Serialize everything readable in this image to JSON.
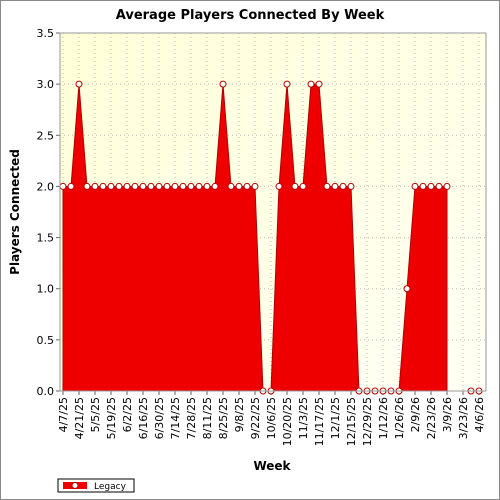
{
  "chart_data": {
    "type": "area",
    "title": "Average Players Connected By Week",
    "x_label": "Week",
    "y_label": "Players Connected",
    "categories": [
      "4/7/25",
      null,
      "4/21/25",
      null,
      "5/5/25",
      null,
      "5/19/25",
      null,
      "6/2/25",
      null,
      "6/16/25",
      null,
      "6/30/25",
      null,
      "7/14/25",
      null,
      "7/28/25",
      null,
      "8/11/25",
      null,
      "8/25/25",
      null,
      "9/8/25",
      null,
      "9/22/25",
      null,
      "10/6/25",
      null,
      "10/20/25",
      null,
      "11/3/25",
      null,
      "11/17/25",
      null,
      "12/1/25",
      null,
      "12/15/25",
      null,
      "12/29/25",
      null,
      "1/12/26",
      null,
      "1/26/26",
      null,
      "2/9/26",
      null,
      "2/23/26",
      null,
      "3/9/26",
      null,
      "3/23/26",
      null,
      "4/6/26"
    ],
    "series": [
      {
        "name": "Legacy",
        "color": "#ee0000",
        "values": [
          2,
          2,
          3,
          2,
          2,
          2,
          2,
          2,
          2,
          2,
          2,
          2,
          2,
          2,
          2,
          2,
          2,
          2,
          2,
          2,
          3,
          2,
          2,
          2,
          2,
          0,
          0,
          2,
          3,
          2,
          2,
          3,
          3,
          2,
          2,
          2,
          2,
          0,
          0,
          0,
          0,
          0,
          0,
          1,
          2,
          2,
          2,
          2,
          2,
          null,
          null,
          0,
          0
        ]
      }
    ],
    "ylim": [
      0,
      3.5
    ],
    "yticks": [
      {
        "value": 0,
        "label": "0.0"
      },
      {
        "value": 0.5,
        "label": "0.5"
      },
      {
        "value": 1,
        "label": "1.0"
      },
      {
        "value": 1.5,
        "label": "1.5"
      },
      {
        "value": 2,
        "label": "2.0"
      },
      {
        "value": 2.5,
        "label": "2.5"
      },
      {
        "value": 3,
        "label": "3.0"
      },
      {
        "value": 3.5,
        "label": "3.5"
      }
    ],
    "grid": true
  }
}
